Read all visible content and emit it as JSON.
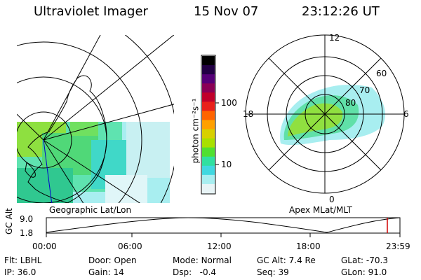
{
  "header": {
    "instrument": "Ultraviolet Imager",
    "date": "15 Nov 07",
    "time": "23:12:26 UT"
  },
  "colorbar": {
    "unit_label": "photon cm⁻²s⁻¹",
    "ticks": [
      "100",
      "10"
    ],
    "colors": [
      "#000000",
      "#220044",
      "#550077",
      "#8a0055",
      "#c0002a",
      "#e8201a",
      "#ff6400",
      "#ffa000",
      "#d8d000",
      "#a8e000",
      "#50e030",
      "#30e0a0",
      "#40d8e0",
      "#a8eef0",
      "#e8f4f6"
    ]
  },
  "left_panel": {
    "label": "Geographic Lat/Lon"
  },
  "right_panel": {
    "label": "Apex MLat/MLT",
    "mlt_labels": {
      "top": "12",
      "left": "18",
      "right": "6",
      "bottom": "0"
    },
    "lat_labels": [
      "60",
      "70",
      "80"
    ]
  },
  "timeline": {
    "axis_title": "GC Alt",
    "y_ticks": [
      "9.0",
      "1.8"
    ],
    "x_ticks": [
      "00:00",
      "06:00",
      "12:00",
      "18:00",
      "23:59"
    ],
    "marker_color": "#d00000"
  },
  "status": {
    "row1": [
      {
        "key": "Flt:",
        "value": "LBHL"
      },
      {
        "key": "Door:",
        "value": "Open"
      },
      {
        "key": "Mode:",
        "value": "Normal"
      },
      {
        "key": "GC Alt:",
        "value": "7.4 Re"
      },
      {
        "key": "GLat:",
        "value": "-70.3"
      }
    ],
    "row2": [
      {
        "key": "IP:",
        "value": "36.0"
      },
      {
        "key": "Gain:",
        "value": "14"
      },
      {
        "key": "Dsp:",
        "value": "  -0.4"
      },
      {
        "key": "Seq:",
        "value": "39"
      },
      {
        "key": "GLon:",
        "value": "91.0"
      }
    ]
  }
}
